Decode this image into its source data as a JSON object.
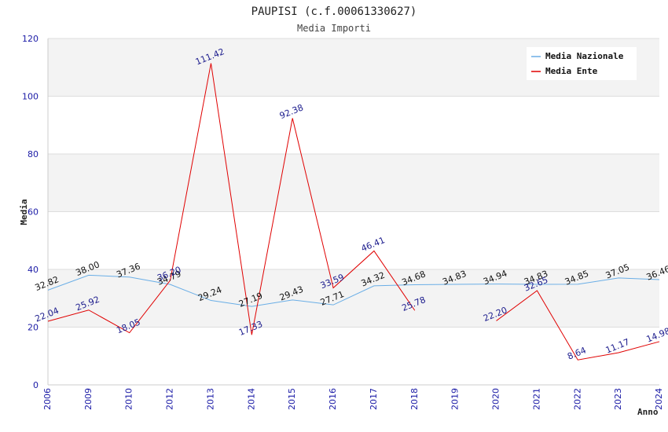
{
  "chart_data": {
    "type": "line",
    "title": "PAUPISI (c.f.00061330627)",
    "subtitle": "Media Importi",
    "xlabel": "Anno",
    "ylabel": "Media",
    "ylim": [
      0,
      120
    ],
    "yticks": [
      0,
      20,
      40,
      60,
      80,
      100,
      120
    ],
    "categories": [
      "2006",
      "2009",
      "2010",
      "2012",
      "2013",
      "2014",
      "2015",
      "2016",
      "2017",
      "2018",
      "2019",
      "2020",
      "2021",
      "2022",
      "2023",
      "2024"
    ],
    "legend_position": "top-right",
    "series": [
      {
        "name": "Media Nazionale",
        "color": "#6aaee6",
        "values": [
          32.82,
          38.0,
          37.36,
          34.79,
          29.24,
          27.19,
          29.43,
          27.71,
          34.32,
          34.68,
          34.83,
          34.94,
          34.83,
          34.85,
          37.05,
          36.46
        ],
        "labels": [
          "32.82",
          "38.00",
          "37.36",
          "34.79",
          "29.24",
          "27.19",
          "29.43",
          "27.71",
          "34.32",
          "34.68",
          "34.83",
          "34.94",
          "34.83",
          "34.85",
          "37.05",
          "36.46"
        ]
      },
      {
        "name": "Media Ente",
        "color": "#e00000",
        "values": [
          22.04,
          25.92,
          18.05,
          36.2,
          111.42,
          17.33,
          92.38,
          33.59,
          46.41,
          25.78,
          null,
          22.2,
          32.65,
          8.64,
          11.17,
          14.98
        ],
        "labels": [
          "22.04",
          "25.92",
          "18.05",
          "36.20",
          "111.42",
          "17.33",
          "92.38",
          "33.59",
          "46.41",
          "25.78",
          "",
          "22.20",
          "32.65",
          "8.64",
          "11.17",
          "14.98"
        ]
      }
    ]
  }
}
